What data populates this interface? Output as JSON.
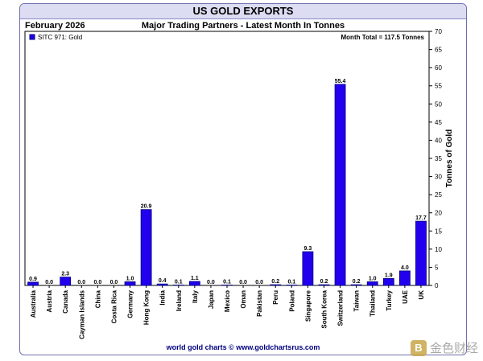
{
  "header": {
    "title": "US GOLD EXPORTS",
    "date": "February 2026",
    "subtitle": "Major Trading Partners - Latest Month In Tonnes"
  },
  "footer": {
    "credit": "world gold charts © www.goldchartsrus.com"
  },
  "watermark": {
    "logo": "B",
    "text": "金色财经"
  },
  "chart_data": {
    "type": "bar",
    "legend_label": "SITC 971: Gold",
    "legend_position": "top-left",
    "annotation": "Month Total = 117.5 Tonnes",
    "ylabel": "Tonnes of Gold",
    "ylim": [
      0,
      70
    ],
    "yticks": [
      0,
      5,
      10,
      15,
      20,
      25,
      30,
      35,
      40,
      45,
      50,
      55,
      60,
      65,
      70
    ],
    "categories": [
      "Australia",
      "Austria",
      "Canada",
      "Cayman Islands",
      "China",
      "Costa Rica",
      "Germany",
      "Hong Kong",
      "India",
      "Ireland",
      "Italy",
      "Japan",
      "Mexico",
      "Oman",
      "Pakistan",
      "Peru",
      "Poland",
      "Singapore",
      "South Korea",
      "Switzerland",
      "Taiwan",
      "Thailand",
      "Turkey",
      "UAE",
      "UK"
    ],
    "values": [
      0.9,
      0.0,
      2.3,
      0.0,
      0.0,
      0.0,
      1.0,
      20.9,
      0.4,
      0.1,
      1.1,
      0.0,
      0.1,
      0.0,
      0.0,
      0.2,
      0.1,
      9.3,
      0.2,
      55.4,
      0.2,
      1.0,
      1.9,
      4.0,
      17.7
    ],
    "value_labels": [
      "0.9",
      "0.0",
      "2.3",
      "0.0",
      "0.0",
      "0.0",
      "1.0",
      "20.9",
      "0.4",
      "0.1",
      "1.1",
      "0.0",
      "0.1",
      "0.0",
      "0.0",
      "0.2",
      "0.1",
      "9.3",
      "0.2",
      "55.4",
      "0.2",
      "1.0",
      "1.9",
      "4.0",
      "17.7"
    ],
    "bar_color": "#2200ee",
    "bar_edge": "#00007a"
  }
}
